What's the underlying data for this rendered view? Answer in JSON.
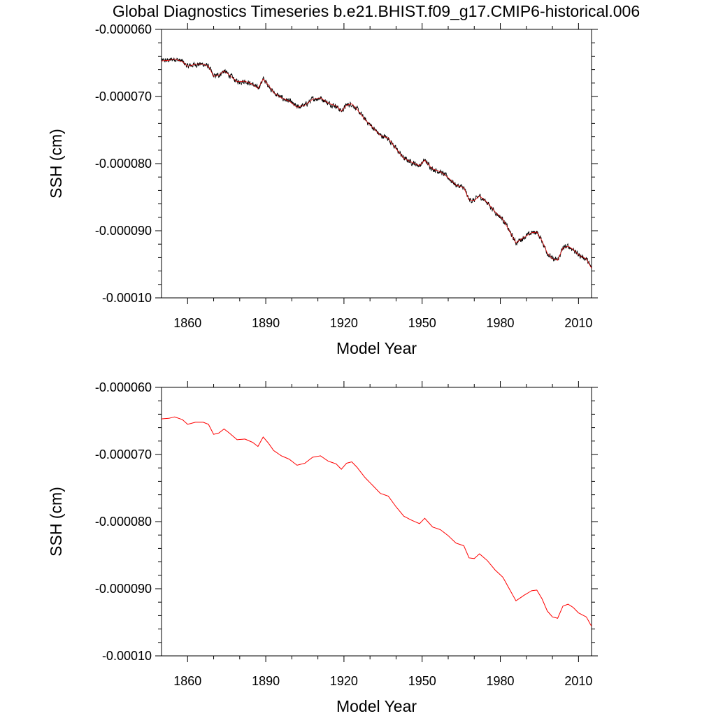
{
  "title": "Global Diagnostics Timeseries b.e21.BHIST.f09_g17.CMIP6-historical.006",
  "colors": {
    "annual_line": "#ff0000",
    "monthly_line": "#000000",
    "axes": "#000000"
  },
  "chart_data": [
    {
      "type": "line",
      "panel": "top",
      "xlabel": "Model Year",
      "ylabel": "SSH (cm)",
      "xlim": [
        1850,
        2015
      ],
      "ylim": [
        -0.0001,
        -6e-05
      ],
      "x_ticks": [
        1860,
        1890,
        1920,
        1950,
        1980,
        2010
      ],
      "x_tick_labels": [
        "1860",
        "1890",
        "1920",
        "1950",
        "1980",
        "2010"
      ],
      "y_ticks": [
        -6e-05,
        -7e-05,
        -8e-05,
        -9e-05,
        -0.0001
      ],
      "y_tick_labels": [
        "-0.000060",
        "-0.000070",
        "-0.000080",
        "-0.000090",
        "-0.00010"
      ],
      "series": [
        {
          "name": "monthly",
          "color": "#000000",
          "smoothing": "monthly noise around annual means"
        },
        {
          "name": "annual",
          "color": "#ff0000"
        }
      ],
      "annual_key_points": {
        "x": [
          1850,
          1853,
          1855,
          1858,
          1860,
          1863,
          1866,
          1868,
          1870,
          1872,
          1874,
          1876,
          1879,
          1882,
          1885,
          1887,
          1889,
          1891,
          1893,
          1896,
          1899,
          1902,
          1905,
          1908,
          1911,
          1914,
          1917,
          1919,
          1921,
          1923,
          1925,
          1928,
          1931,
          1934,
          1937,
          1940,
          1943,
          1946,
          1949,
          1951,
          1954,
          1957,
          1960,
          1963,
          1966,
          1968,
          1970,
          1972,
          1975,
          1978,
          1981,
          1984,
          1986,
          1989,
          1992,
          1994,
          1996,
          1998,
          2000,
          2002,
          2004,
          2006,
          2008,
          2010,
          2013,
          2015
        ],
        "y": [
          -6.47e-05,
          -6.46e-05,
          -6.44e-05,
          -6.48e-05,
          -6.55e-05,
          -6.52e-05,
          -6.52e-05,
          -6.55e-05,
          -6.7e-05,
          -6.68e-05,
          -6.62e-05,
          -6.68e-05,
          -6.78e-05,
          -6.77e-05,
          -6.82e-05,
          -6.88e-05,
          -6.74e-05,
          -6.83e-05,
          -6.94e-05,
          -7.02e-05,
          -7.07e-05,
          -7.16e-05,
          -7.13e-05,
          -7.04e-05,
          -7.02e-05,
          -7.1e-05,
          -7.14e-05,
          -7.22e-05,
          -7.13e-05,
          -7.11e-05,
          -7.19e-05,
          -7.34e-05,
          -7.46e-05,
          -7.58e-05,
          -7.62e-05,
          -7.78e-05,
          -7.92e-05,
          -7.98e-05,
          -8.03e-05,
          -7.95e-05,
          -8.08e-05,
          -8.12e-05,
          -8.21e-05,
          -8.32e-05,
          -8.36e-05,
          -8.54e-05,
          -8.55e-05,
          -8.48e-05,
          -8.58e-05,
          -8.72e-05,
          -8.83e-05,
          -9.04e-05,
          -9.18e-05,
          -9.1e-05,
          -9.03e-05,
          -9.02e-05,
          -9.15e-05,
          -9.33e-05,
          -9.42e-05,
          -9.44e-05,
          -9.26e-05,
          -9.23e-05,
          -9.28e-05,
          -9.36e-05,
          -9.42e-05,
          -9.56e-05
        ]
      }
    },
    {
      "type": "line",
      "panel": "bottom",
      "xlabel": "Model Year",
      "ylabel": "SSH (cm)",
      "xlim": [
        1850,
        2015
      ],
      "ylim": [
        -0.0001,
        -6e-05
      ],
      "x_ticks": [
        1860,
        1890,
        1920,
        1950,
        1980,
        2010
      ],
      "x_tick_labels": [
        "1860",
        "1890",
        "1920",
        "1950",
        "1980",
        "2010"
      ],
      "y_ticks": [
        -6e-05,
        -7e-05,
        -8e-05,
        -9e-05,
        -0.0001
      ],
      "y_tick_labels": [
        "-0.000060",
        "-0.000070",
        "-0.000080",
        "-0.000090",
        "-0.00010"
      ],
      "series": [
        {
          "name": "annual",
          "color": "#ff0000"
        }
      ],
      "annual_key_points": "same as top panel annual series"
    }
  ]
}
